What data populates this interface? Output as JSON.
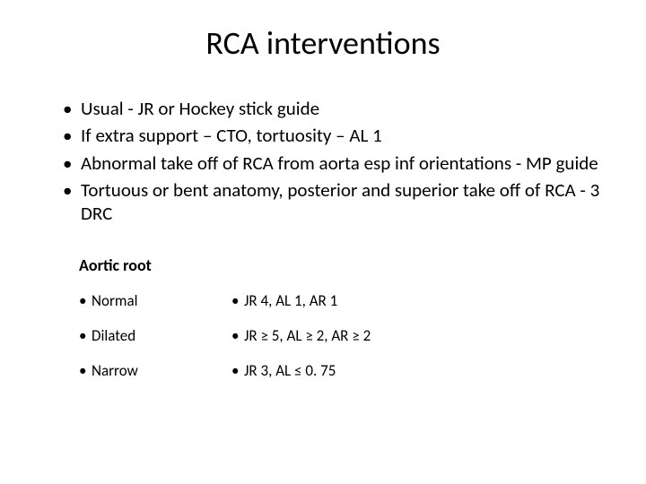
{
  "title": "RCA interventions",
  "bullets": [
    "Usual  - JR or Hockey stick guide",
    "If extra support – CTO, tortuosity – AL 1",
    "Abnormal take off of RCA from aorta esp inf orientations  - MP guide",
    "Tortuous or bent anatomy, posterior and superior take off of RCA - 3 DRC"
  ],
  "table": {
    "header": "Aortic root",
    "rows": [
      {
        "left": "Normal",
        "right": "JR 4, AL 1, AR 1"
      },
      {
        "left": "Dilated",
        "right": "JR ≥ 5, AL ≥ 2, AR ≥ 2"
      },
      {
        "left": "Narrow",
        "right": "JR 3, AL ≤ 0. 75"
      }
    ]
  },
  "colors": {
    "background": "#ffffff",
    "text": "#000000"
  },
  "typography": {
    "title_fontsize": 36,
    "bullet_fontsize": 21,
    "table_header_fontsize": 18,
    "table_cell_fontsize": 17,
    "font_family": "Calibri"
  }
}
